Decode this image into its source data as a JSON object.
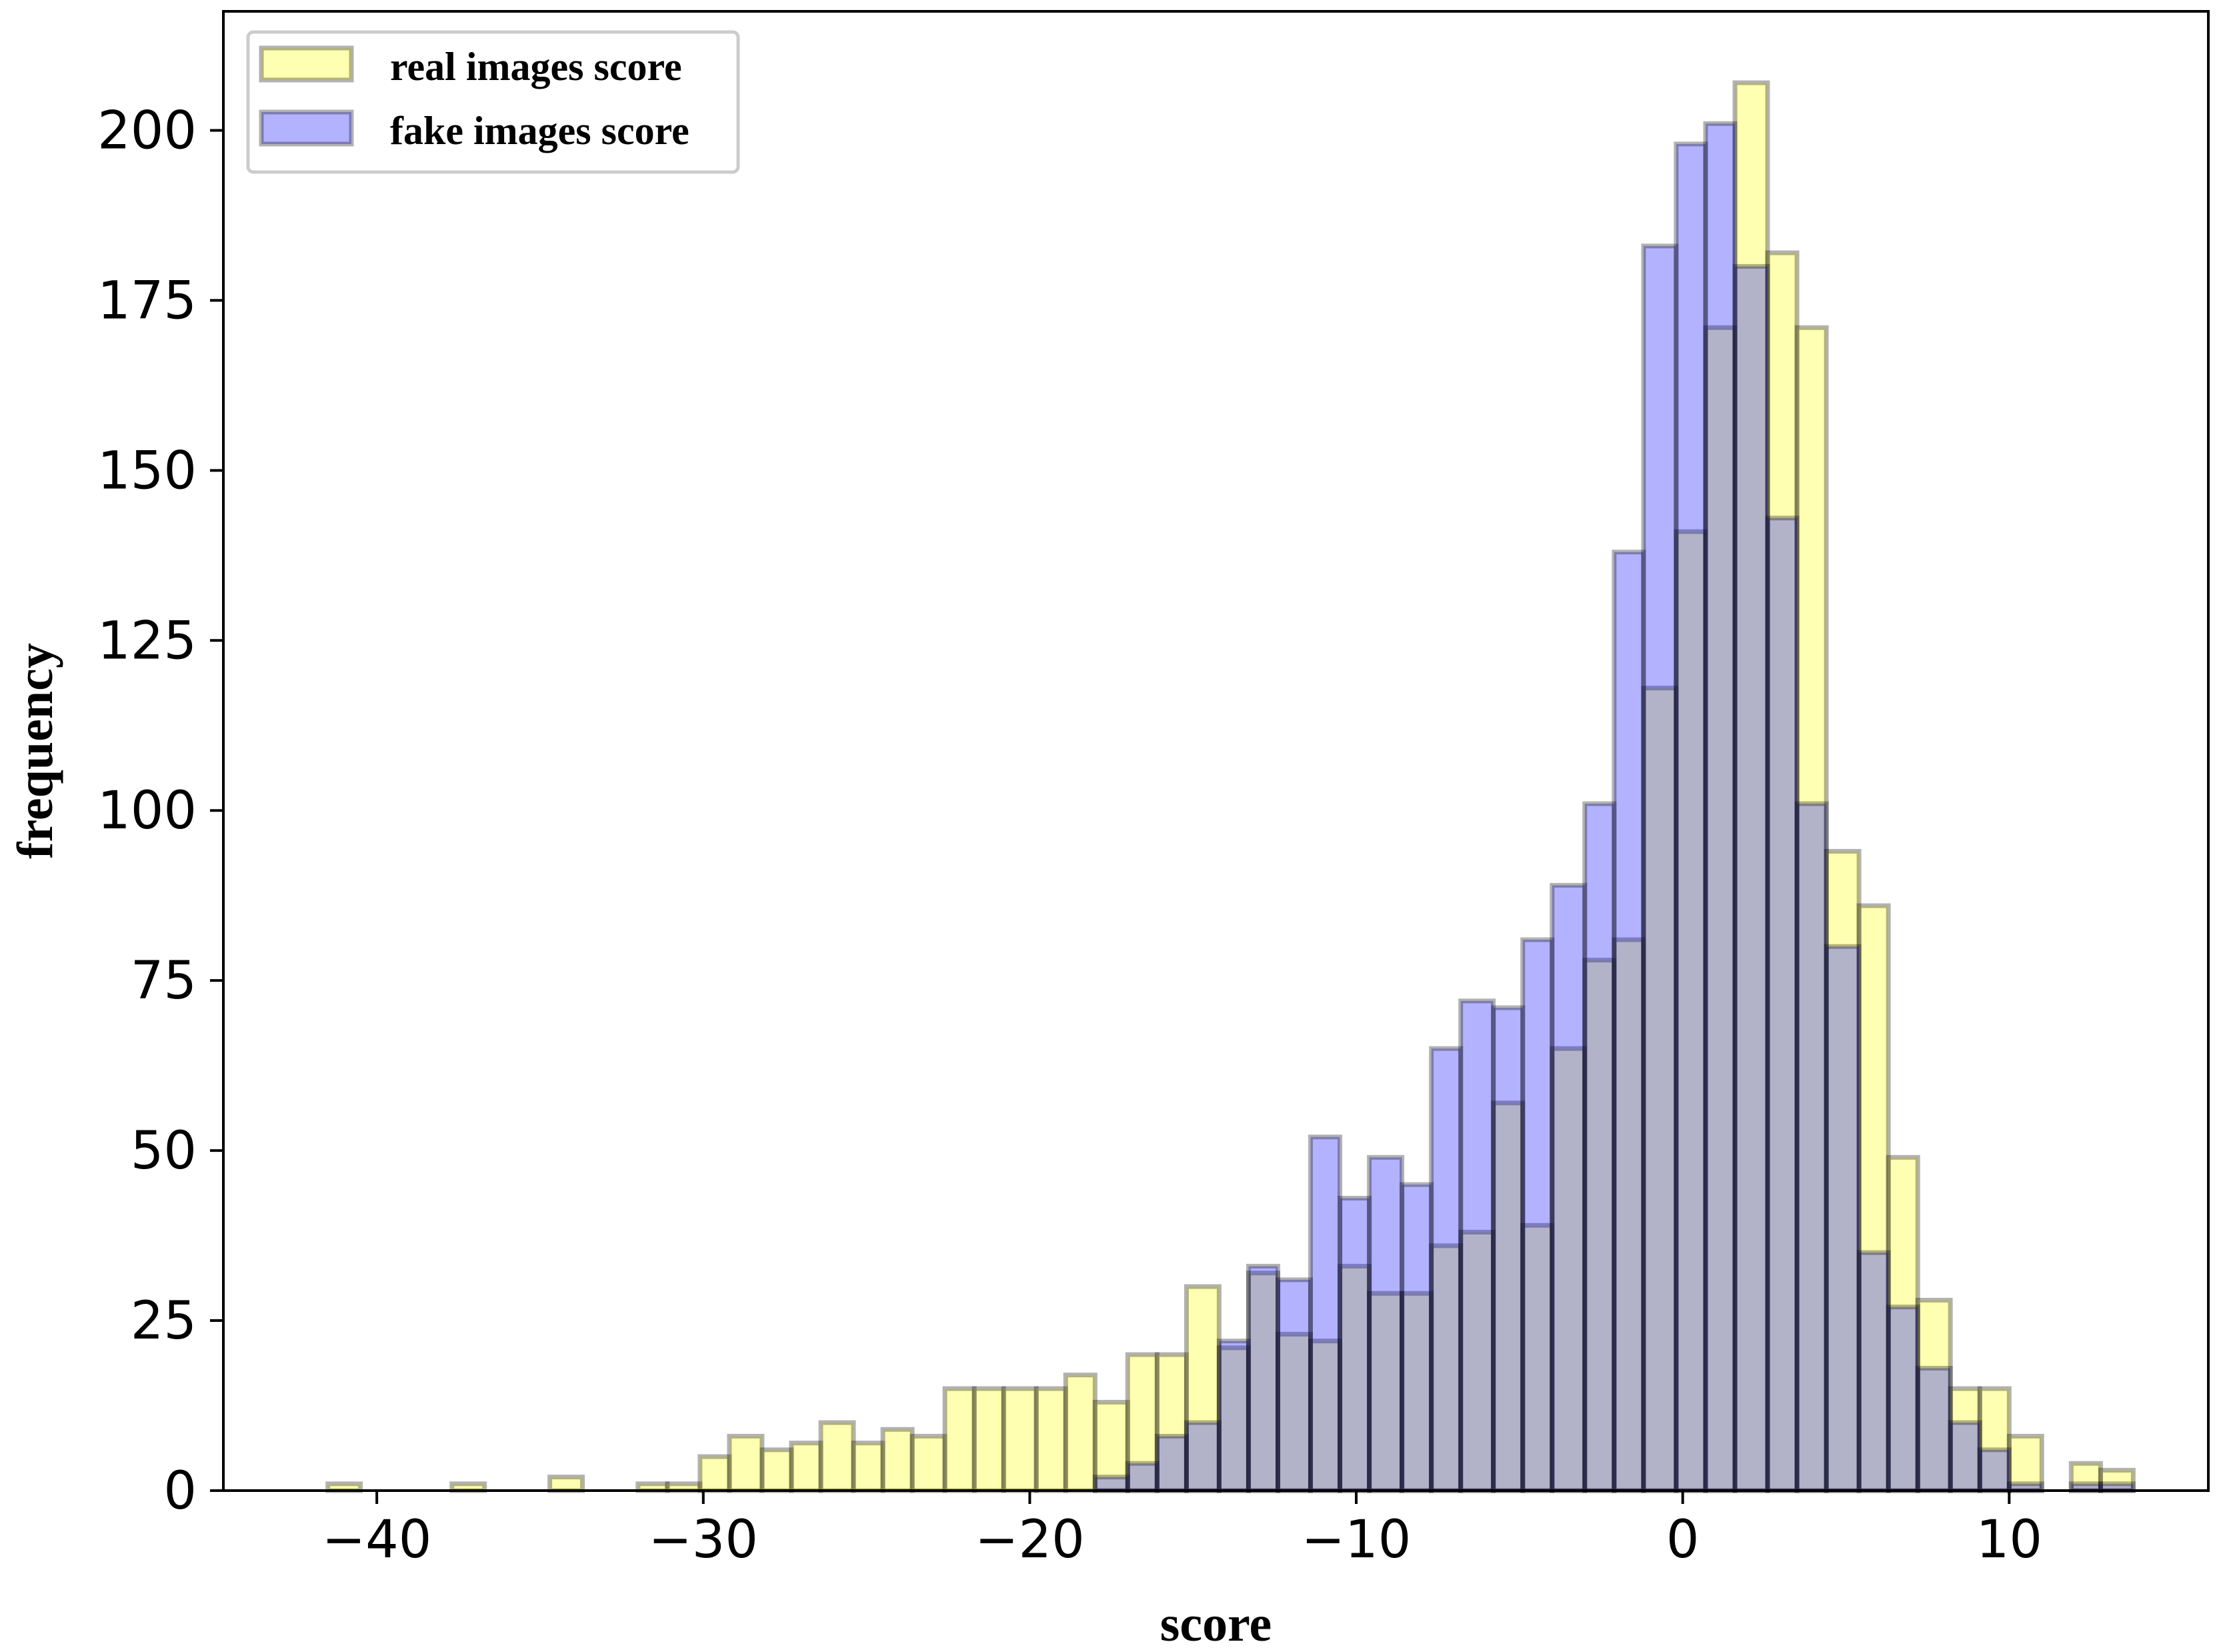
{
  "chart_data": {
    "type": "bar",
    "subtype": "overlapping-histogram",
    "title": "",
    "xlabel": "score",
    "ylabel": "frequency",
    "xlim": [
      -44.7,
      16.1
    ],
    "ylim": [
      0,
      217.5
    ],
    "xticks": [
      -40,
      -30,
      -20,
      -10,
      0,
      10
    ],
    "xtick_labels": [
      "−40",
      "−30",
      "−20",
      "−10",
      "0",
      "10"
    ],
    "yticks": [
      0,
      25,
      50,
      75,
      100,
      125,
      150,
      175,
      200
    ],
    "ytick_labels": [
      "0",
      "25",
      "50",
      "75",
      "100",
      "125",
      "150",
      "175",
      "200"
    ],
    "grid": false,
    "legend_position": "top-left",
    "series": [
      {
        "name": "real images score",
        "color": "#ffff00",
        "opacity": 0.3,
        "edge_color": "#000000",
        "bins": [
          {
            "x0": -41.5,
            "x1": -40.5,
            "count": 1
          },
          {
            "x0": -37.7,
            "x1": -36.7,
            "count": 1
          },
          {
            "x0": -34.7,
            "x1": -33.7,
            "count": 2
          },
          {
            "x0": -32.0,
            "x1": -31.1,
            "count": 1
          },
          {
            "x0": -31.1,
            "x1": -30.1,
            "count": 1
          },
          {
            "x0": -30.1,
            "x1": -29.2,
            "count": 5
          },
          {
            "x0": -29.2,
            "x1": -28.2,
            "count": 8
          },
          {
            "x0": -28.2,
            "x1": -27.3,
            "count": 6
          },
          {
            "x0": -27.3,
            "x1": -26.4,
            "count": 7
          },
          {
            "x0": -26.4,
            "x1": -25.4,
            "count": 10
          },
          {
            "x0": -25.4,
            "x1": -24.5,
            "count": 7
          },
          {
            "x0": -24.5,
            "x1": -23.6,
            "count": 9
          },
          {
            "x0": -23.6,
            "x1": -22.6,
            "count": 8
          },
          {
            "x0": -22.6,
            "x1": -21.7,
            "count": 15
          },
          {
            "x0": -21.7,
            "x1": -20.8,
            "count": 15
          },
          {
            "x0": -20.8,
            "x1": -19.8,
            "count": 15
          },
          {
            "x0": -19.8,
            "x1": -18.9,
            "count": 15
          },
          {
            "x0": -18.9,
            "x1": -18.0,
            "count": 17
          },
          {
            "x0": -18.0,
            "x1": -17.0,
            "count": 13
          },
          {
            "x0": -17.0,
            "x1": -16.1,
            "count": 20
          },
          {
            "x0": -16.1,
            "x1": -15.2,
            "count": 20
          },
          {
            "x0": -15.2,
            "x1": -14.2,
            "count": 30
          },
          {
            "x0": -14.2,
            "x1": -13.3,
            "count": 21
          },
          {
            "x0": -13.3,
            "x1": -12.4,
            "count": 32
          },
          {
            "x0": -12.4,
            "x1": -11.4,
            "count": 23
          },
          {
            "x0": -11.4,
            "x1": -10.5,
            "count": 22
          },
          {
            "x0": -10.5,
            "x1": -9.6,
            "count": 33
          },
          {
            "x0": -9.6,
            "x1": -8.6,
            "count": 29
          },
          {
            "x0": -8.6,
            "x1": -7.7,
            "count": 29
          },
          {
            "x0": -7.7,
            "x1": -6.8,
            "count": 36
          },
          {
            "x0": -6.8,
            "x1": -5.8,
            "count": 38
          },
          {
            "x0": -5.8,
            "x1": -4.9,
            "count": 57
          },
          {
            "x0": -4.9,
            "x1": -4.0,
            "count": 39
          },
          {
            "x0": -4.0,
            "x1": -3.0,
            "count": 65
          },
          {
            "x0": -3.0,
            "x1": -2.1,
            "count": 78
          },
          {
            "x0": -2.1,
            "x1": -1.2,
            "count": 81
          },
          {
            "x0": -1.2,
            "x1": -0.2,
            "count": 118
          },
          {
            "x0": -0.2,
            "x1": 0.7,
            "count": 141
          },
          {
            "x0": 0.7,
            "x1": 1.6,
            "count": 171
          },
          {
            "x0": 1.6,
            "x1": 2.6,
            "count": 207
          },
          {
            "x0": 2.6,
            "x1": 3.5,
            "count": 182
          },
          {
            "x0": 3.5,
            "x1": 4.4,
            "count": 171
          },
          {
            "x0": 4.4,
            "x1": 5.4,
            "count": 94
          },
          {
            "x0": 5.4,
            "x1": 6.3,
            "count": 86
          },
          {
            "x0": 6.3,
            "x1": 7.2,
            "count": 49
          },
          {
            "x0": 7.2,
            "x1": 8.2,
            "count": 28
          },
          {
            "x0": 8.2,
            "x1": 9.1,
            "count": 15
          },
          {
            "x0": 9.1,
            "x1": 10.0,
            "count": 15
          },
          {
            "x0": 10.0,
            "x1": 11.0,
            "count": 8
          },
          {
            "x0": 11.9,
            "x1": 12.8,
            "count": 4
          },
          {
            "x0": 12.8,
            "x1": 13.8,
            "count": 3
          }
        ]
      },
      {
        "name": "fake images score",
        "color": "#0000ff",
        "opacity": 0.3,
        "edge_color": "#000000",
        "bins": [
          {
            "x0": -18.0,
            "x1": -17.0,
            "count": 2
          },
          {
            "x0": -17.0,
            "x1": -16.1,
            "count": 4
          },
          {
            "x0": -16.1,
            "x1": -15.2,
            "count": 8
          },
          {
            "x0": -15.2,
            "x1": -14.2,
            "count": 10
          },
          {
            "x0": -14.2,
            "x1": -13.3,
            "count": 22
          },
          {
            "x0": -13.3,
            "x1": -12.4,
            "count": 33
          },
          {
            "x0": -12.4,
            "x1": -11.4,
            "count": 31
          },
          {
            "x0": -11.4,
            "x1": -10.5,
            "count": 52
          },
          {
            "x0": -10.5,
            "x1": -9.6,
            "count": 43
          },
          {
            "x0": -9.6,
            "x1": -8.6,
            "count": 49
          },
          {
            "x0": -8.6,
            "x1": -7.7,
            "count": 45
          },
          {
            "x0": -7.7,
            "x1": -6.8,
            "count": 65
          },
          {
            "x0": -6.8,
            "x1": -5.8,
            "count": 72
          },
          {
            "x0": -5.8,
            "x1": -4.9,
            "count": 71
          },
          {
            "x0": -4.9,
            "x1": -4.0,
            "count": 81
          },
          {
            "x0": -4.0,
            "x1": -3.0,
            "count": 89
          },
          {
            "x0": -3.0,
            "x1": -2.1,
            "count": 101
          },
          {
            "x0": -2.1,
            "x1": -1.2,
            "count": 138
          },
          {
            "x0": -1.2,
            "x1": -0.2,
            "count": 183
          },
          {
            "x0": -0.2,
            "x1": 0.7,
            "count": 198
          },
          {
            "x0": 0.7,
            "x1": 1.6,
            "count": 201
          },
          {
            "x0": 1.6,
            "x1": 2.6,
            "count": 180
          },
          {
            "x0": 2.6,
            "x1": 3.5,
            "count": 143
          },
          {
            "x0": 3.5,
            "x1": 4.4,
            "count": 101
          },
          {
            "x0": 4.4,
            "x1": 5.4,
            "count": 80
          },
          {
            "x0": 5.4,
            "x1": 6.3,
            "count": 35
          },
          {
            "x0": 6.3,
            "x1": 7.2,
            "count": 27
          },
          {
            "x0": 7.2,
            "x1": 8.2,
            "count": 18
          },
          {
            "x0": 8.2,
            "x1": 9.1,
            "count": 10
          },
          {
            "x0": 9.1,
            "x1": 10.0,
            "count": 6
          },
          {
            "x0": 10.0,
            "x1": 11.0,
            "count": 1
          },
          {
            "x0": 11.9,
            "x1": 12.8,
            "count": 1
          },
          {
            "x0": 12.8,
            "x1": 13.8,
            "count": 1
          }
        ]
      }
    ]
  }
}
